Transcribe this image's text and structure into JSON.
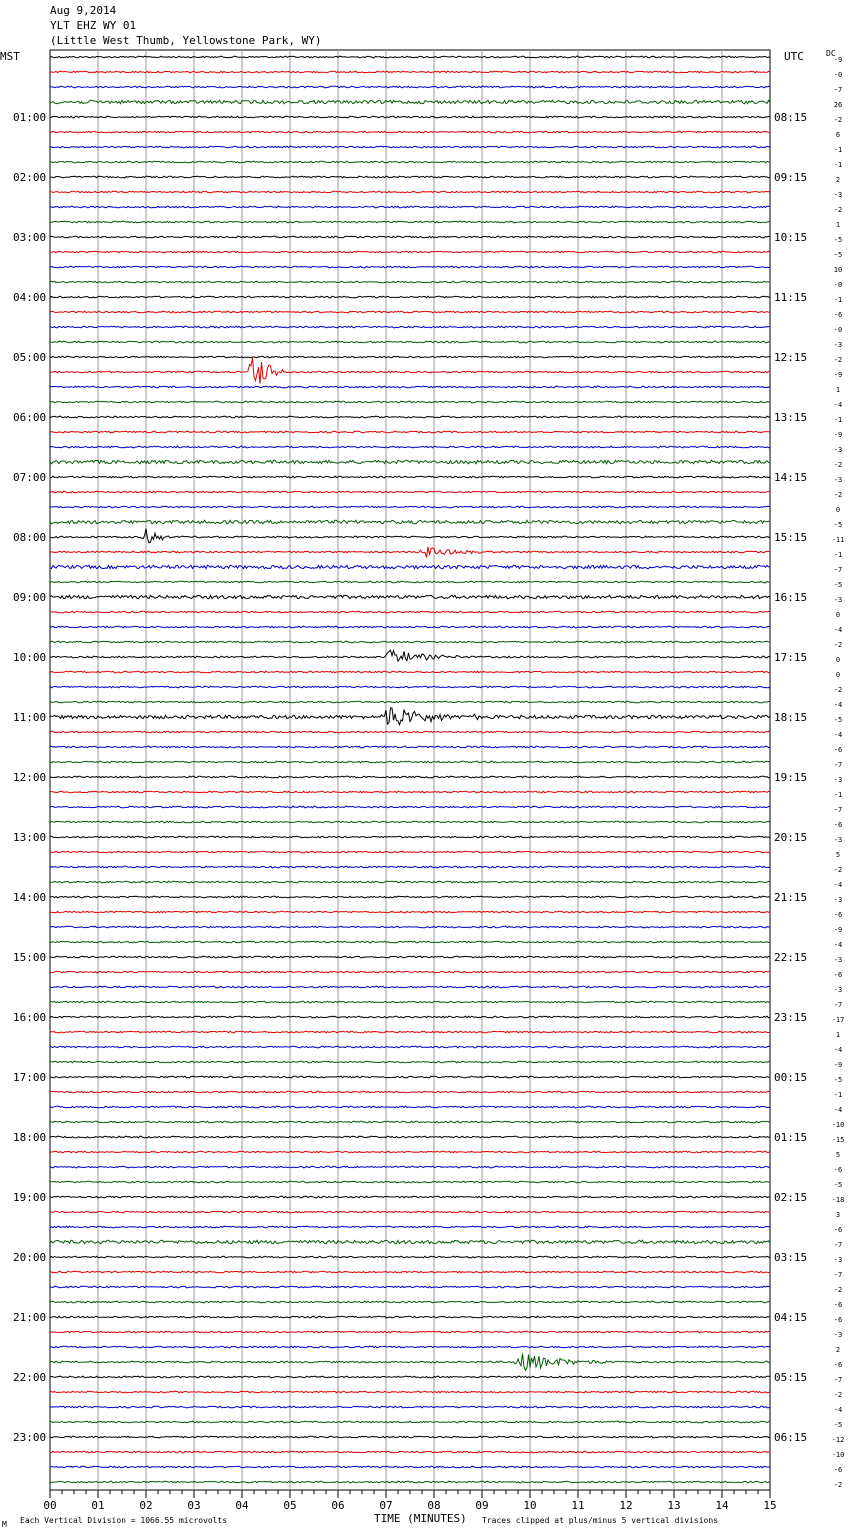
{
  "header": {
    "date": "Aug 9,2014",
    "station": "YLT EHZ WY 01",
    "location": "(Little West Thumb, Yellowstone Park, WY)"
  },
  "left_label": "MST",
  "right_label": "UTC",
  "dc_label": "DC",
  "footer": {
    "scale": "Each Vertical Division = 1066.55 microvolts",
    "clip": "Traces clipped at plus/minus 5 vertical divisions",
    "corner_mark": "M"
  },
  "colors": [
    "#000000",
    "#e00000",
    "#0000d0",
    "#006000"
  ],
  "chart_data": {
    "type": "line",
    "xlabel": "TIME (MINUTES)",
    "x_ticks": [
      "00",
      "01",
      "02",
      "03",
      "04",
      "05",
      "06",
      "07",
      "08",
      "09",
      "10",
      "11",
      "12",
      "13",
      "14",
      "15"
    ],
    "xlim": [
      0,
      15
    ],
    "rows_per_hour": 4,
    "mst_labels": [
      "",
      "01:00",
      "02:00",
      "03:00",
      "04:00",
      "05:00",
      "06:00",
      "07:00",
      "08:00",
      "09:00",
      "10:00",
      "11:00",
      "12:00",
      "13:00",
      "14:00",
      "15:00",
      "16:00",
      "17:00",
      "18:00",
      "19:00",
      "20:00",
      "21:00",
      "22:00",
      "23:00"
    ],
    "utc_labels": [
      "",
      "08:15",
      "09:15",
      "10:15",
      "11:15",
      "12:15",
      "13:15",
      "14:15",
      "15:15",
      "16:15",
      "17:15",
      "18:15",
      "19:15",
      "20:15",
      "21:15",
      "22:15",
      "23:15",
      "00:15",
      "01:15",
      "02:15",
      "03:15",
      "04:15",
      "05:15",
      "06:15"
    ],
    "dc_offsets": [
      "-9",
      "-0",
      "-7",
      "26",
      "-2",
      "6",
      "-1",
      "-1",
      "2",
      "-3",
      "-2",
      "1",
      "-5",
      "-5",
      "10",
      "-0",
      "-1",
      "-6",
      "-0",
      "-3",
      "-2",
      "-9",
      "1",
      "-4",
      "-1",
      "-9",
      "-3",
      "-2",
      "-3",
      "-2",
      "0",
      "-5",
      "-11",
      "-1",
      "-7",
      "-5",
      "-3",
      "0",
      "-4",
      "-2",
      "0",
      "0",
      "-2",
      "-4",
      "-5",
      "-4",
      "-6",
      "-7",
      "-3",
      "-1",
      "-7",
      "-6",
      "-3",
      "5",
      "-2",
      "-4",
      "-3",
      "-6",
      "-9",
      "-4",
      "-3",
      "-6",
      "-3",
      "-7",
      "-17",
      "1",
      "-4",
      "-9",
      "-5",
      "-1",
      "-4",
      "-10",
      "-15",
      "5",
      "-6",
      "-5",
      "-18",
      "3",
      "-6",
      "-7",
      "-3",
      "-7",
      "-2",
      "-6",
      "-6",
      "-3",
      "2",
      "-6",
      "-7",
      "-2",
      "-4",
      "-5",
      "-12",
      "-10",
      "-6",
      "-2"
    ],
    "events": [
      {
        "row": 21,
        "minute": 4.25,
        "amplitude": 25,
        "duration": 0.6
      },
      {
        "row": 32,
        "minute": 2.05,
        "amplitude": 12,
        "duration": 0.5
      },
      {
        "row": 33,
        "minute": 7.8,
        "amplitude": 7,
        "duration": 1.5
      },
      {
        "row": 40,
        "minute": 7.1,
        "amplitude": 8,
        "duration": 1.6
      },
      {
        "row": 44,
        "minute": 7.0,
        "amplitude": 13,
        "duration": 2.0
      },
      {
        "row": 87,
        "minute": 9.8,
        "amplitude": 10,
        "duration": 2.0
      }
    ],
    "noisy_rows": [
      3,
      27,
      31,
      34,
      36,
      44,
      79
    ]
  }
}
